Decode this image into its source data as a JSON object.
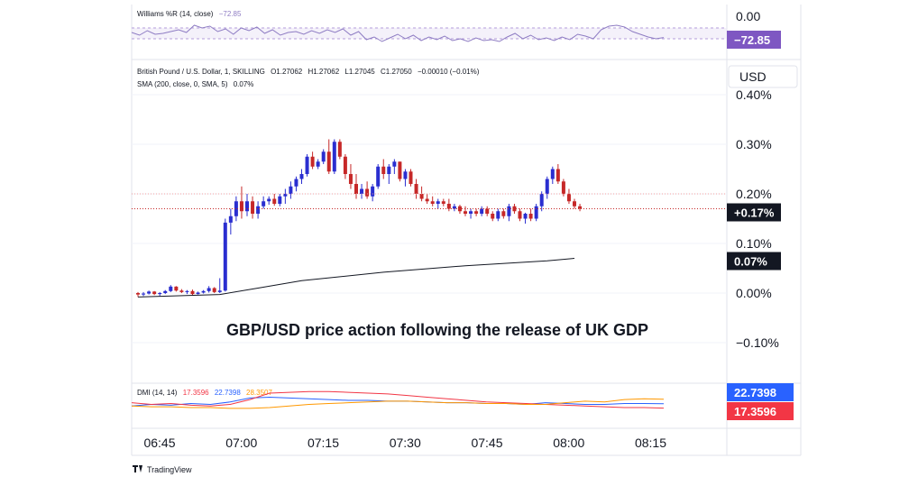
{
  "header": {
    "williams_label": "Williams %R (14, close)",
    "williams_value": "−72.85",
    "symbol_line": "British Pound / U.S. Dollar, 1, SKILLING",
    "ohlc": {
      "o": "O1.27062",
      "h": "H1.27062",
      "l": "L1.27045",
      "c": "C1.27050",
      "chg": "−0.00010 (−0.01%)"
    },
    "sma_label": "SMA (200, close, 0, SMA, 5)",
    "sma_value": "0.07%",
    "dmi_label": "DMI (14, 14)",
    "dmi_values": [
      "17.3596",
      "22.7398",
      "28.3507"
    ]
  },
  "annotation": "GBP/USD price action following the release of UK GDP",
  "footer": {
    "brand": "TradingView"
  },
  "currency_button": "USD",
  "colors": {
    "up": "#2a2ed0",
    "down": "#c62828",
    "sma": "#131722",
    "williams": "#8e7cc3",
    "plus_di": "#2962ff",
    "minus_di": "#f23645",
    "adx": "#ff9800"
  },
  "chart_data": [
    {
      "type": "candlestick",
      "ylabel": "",
      "y_unit": "%",
      "ylim": [
        -0.1,
        0.4
      ],
      "y_ticks": [
        "0.40%",
        "0.30%",
        "0.20%",
        "0.10%",
        "0.00%",
        "−0.10%"
      ],
      "x_ticks": [
        "06:45",
        "07:00",
        "07:15",
        "07:30",
        "07:45",
        "08:00",
        "08:15"
      ],
      "time_start": "06:45",
      "interval_minutes": 1,
      "last_value_tag": "+0.17%",
      "sma_tag": "0.07%",
      "candles": [
        [
          0.0,
          0.002,
          -0.008,
          -0.003
        ],
        [
          -0.003,
          0.002,
          -0.006,
          -0.001
        ],
        [
          -0.001,
          0.005,
          -0.003,
          0.003
        ],
        [
          0.003,
          0.004,
          -0.004,
          -0.002
        ],
        [
          -0.002,
          0.002,
          -0.006,
          0.0
        ],
        [
          0.0,
          0.006,
          -0.002,
          0.004
        ],
        [
          0.004,
          0.016,
          0.002,
          0.013
        ],
        [
          0.013,
          0.014,
          0.003,
          0.005
        ],
        [
          0.005,
          0.008,
          0.0,
          0.002
        ],
        [
          0.002,
          0.006,
          -0.002,
          0.004
        ],
        [
          0.004,
          0.007,
          -0.004,
          -0.002
        ],
        [
          -0.002,
          0.003,
          -0.003,
          0.001
        ],
        [
          0.001,
          0.006,
          -0.001,
          0.004
        ],
        [
          0.004,
          0.014,
          0.001,
          0.01
        ],
        [
          0.01,
          0.012,
          0.0,
          0.002
        ],
        [
          0.002,
          0.03,
          0.0,
          0.005
        ],
        [
          0.005,
          0.15,
          0.003,
          0.142
        ],
        [
          0.142,
          0.17,
          0.118,
          0.155
        ],
        [
          0.155,
          0.195,
          0.145,
          0.185
        ],
        [
          0.185,
          0.215,
          0.15,
          0.165
        ],
        [
          0.165,
          0.2,
          0.155,
          0.185
        ],
        [
          0.185,
          0.195,
          0.15,
          0.16
        ],
        [
          0.16,
          0.185,
          0.15,
          0.175
        ],
        [
          0.175,
          0.195,
          0.17,
          0.185
        ],
        [
          0.185,
          0.195,
          0.178,
          0.19
        ],
        [
          0.19,
          0.2,
          0.176,
          0.18
        ],
        [
          0.18,
          0.2,
          0.175,
          0.195
        ],
        [
          0.195,
          0.21,
          0.18,
          0.2
        ],
        [
          0.2,
          0.225,
          0.19,
          0.215
        ],
        [
          0.215,
          0.235,
          0.205,
          0.23
        ],
        [
          0.23,
          0.25,
          0.22,
          0.24
        ],
        [
          0.24,
          0.28,
          0.235,
          0.275
        ],
        [
          0.275,
          0.285,
          0.25,
          0.255
        ],
        [
          0.255,
          0.27,
          0.25,
          0.265
        ],
        [
          0.265,
          0.29,
          0.26,
          0.285
        ],
        [
          0.285,
          0.31,
          0.24,
          0.245
        ],
        [
          0.245,
          0.31,
          0.24,
          0.305
        ],
        [
          0.305,
          0.31,
          0.27,
          0.275
        ],
        [
          0.275,
          0.28,
          0.23,
          0.24
        ],
        [
          0.24,
          0.26,
          0.21,
          0.22
        ],
        [
          0.22,
          0.24,
          0.19,
          0.2
        ],
        [
          0.2,
          0.22,
          0.19,
          0.21
        ],
        [
          0.21,
          0.225,
          0.19,
          0.195
        ],
        [
          0.195,
          0.22,
          0.185,
          0.215
        ],
        [
          0.215,
          0.26,
          0.21,
          0.255
        ],
        [
          0.255,
          0.27,
          0.23,
          0.24
        ],
        [
          0.24,
          0.26,
          0.22,
          0.255
        ],
        [
          0.255,
          0.27,
          0.24,
          0.265
        ],
        [
          0.265,
          0.265,
          0.225,
          0.23
        ],
        [
          0.23,
          0.25,
          0.215,
          0.245
        ],
        [
          0.245,
          0.25,
          0.215,
          0.22
        ],
        [
          0.22,
          0.23,
          0.19,
          0.2
        ],
        [
          0.2,
          0.215,
          0.185,
          0.19
        ],
        [
          0.19,
          0.2,
          0.18,
          0.185
        ],
        [
          0.185,
          0.195,
          0.175,
          0.18
        ],
        [
          0.18,
          0.19,
          0.17,
          0.185
        ],
        [
          0.185,
          0.19,
          0.175,
          0.18
        ],
        [
          0.18,
          0.19,
          0.165,
          0.17
        ],
        [
          0.17,
          0.18,
          0.165,
          0.175
        ],
        [
          0.175,
          0.178,
          0.16,
          0.165
        ],
        [
          0.165,
          0.175,
          0.155,
          0.16
        ],
        [
          0.16,
          0.17,
          0.15,
          0.165
        ],
        [
          0.165,
          0.17,
          0.155,
          0.16
        ],
        [
          0.16,
          0.175,
          0.155,
          0.17
        ],
        [
          0.17,
          0.175,
          0.155,
          0.16
        ],
        [
          0.16,
          0.165,
          0.145,
          0.15
        ],
        [
          0.15,
          0.17,
          0.145,
          0.165
        ],
        [
          0.165,
          0.17,
          0.15,
          0.155
        ],
        [
          0.155,
          0.18,
          0.145,
          0.175
        ],
        [
          0.175,
          0.18,
          0.16,
          0.165
        ],
        [
          0.165,
          0.17,
          0.145,
          0.15
        ],
        [
          0.15,
          0.162,
          0.14,
          0.16
        ],
        [
          0.16,
          0.17,
          0.145,
          0.15
        ],
        [
          0.15,
          0.18,
          0.145,
          0.175
        ],
        [
          0.175,
          0.205,
          0.165,
          0.2
        ],
        [
          0.2,
          0.235,
          0.19,
          0.23
        ],
        [
          0.23,
          0.255,
          0.22,
          0.25
        ],
        [
          0.25,
          0.26,
          0.22,
          0.225
        ],
        [
          0.225,
          0.23,
          0.195,
          0.2
        ],
        [
          0.2,
          0.21,
          0.18,
          0.185
        ],
        [
          0.185,
          0.19,
          0.17,
          0.175
        ],
        [
          0.175,
          0.18,
          0.165,
          0.17
        ]
      ],
      "sma": {
        "x_minutes": [
          0,
          15,
          22,
          30,
          45,
          60,
          75,
          80
        ],
        "values": [
          -0.008,
          -0.003,
          0.01,
          0.025,
          0.042,
          0.055,
          0.065,
          0.07
        ]
      },
      "annotations": [
        "GBP/USD price action following the release of UK GDP"
      ]
    },
    {
      "type": "line",
      "name": "Williams %R",
      "ylim": [
        -100,
        0
      ],
      "y_ticks": [
        "0.00"
      ],
      "last_value_tag": "−72.85",
      "series": [
        {
          "name": "Williams %R",
          "values": [
            -45,
            -60,
            -35,
            -55,
            -50,
            -40,
            -30,
            -45,
            -5,
            -20,
            -10,
            -40,
            -25,
            -55,
            -20,
            -35,
            -15,
            -50,
            -30,
            -60,
            -45,
            -40,
            -55,
            -35,
            -50,
            -30,
            -45,
            -25,
            -60,
            -40,
            -85,
            -70,
            -95,
            -75,
            -55,
            -80,
            -60,
            -90,
            -70,
            -85,
            -65,
            -90,
            -80,
            -95,
            -75,
            -90,
            -85,
            -95,
            -70,
            -50,
            -80,
            -60,
            -85,
            -75,
            -90,
            -70,
            -85,
            -55,
            -65,
            -80,
            -30,
            -10,
            -5,
            -15,
            -40,
            -55,
            -70,
            -80,
            -72.85
          ]
        }
      ]
    },
    {
      "type": "line",
      "name": "DMI",
      "ylim": [
        0,
        45
      ],
      "last_value_tags": [
        "22.7398",
        "17.3596"
      ],
      "series": [
        {
          "name": "+DI",
          "values": [
            20,
            22,
            21,
            23,
            22,
            25,
            30,
            31,
            30,
            29,
            28,
            27,
            27,
            26,
            26,
            25,
            24,
            24,
            23,
            23,
            22,
            24,
            23,
            22,
            22,
            23,
            23,
            22.74
          ]
        },
        {
          "name": "−DI",
          "values": [
            24,
            22,
            23,
            21,
            20,
            22,
            28,
            36,
            37,
            38,
            38,
            37,
            36,
            35,
            33,
            31,
            29,
            27,
            25,
            24,
            23,
            22,
            21,
            20,
            19,
            18,
            18,
            17.36
          ]
        },
        {
          "name": "ADX",
          "values": [
            20,
            19,
            19,
            18,
            18,
            17,
            17,
            18,
            20,
            22,
            23,
            24,
            25,
            26,
            26,
            25,
            24,
            24,
            23,
            23,
            22,
            22,
            24,
            26,
            25,
            28,
            29,
            28.35
          ]
        }
      ]
    }
  ]
}
